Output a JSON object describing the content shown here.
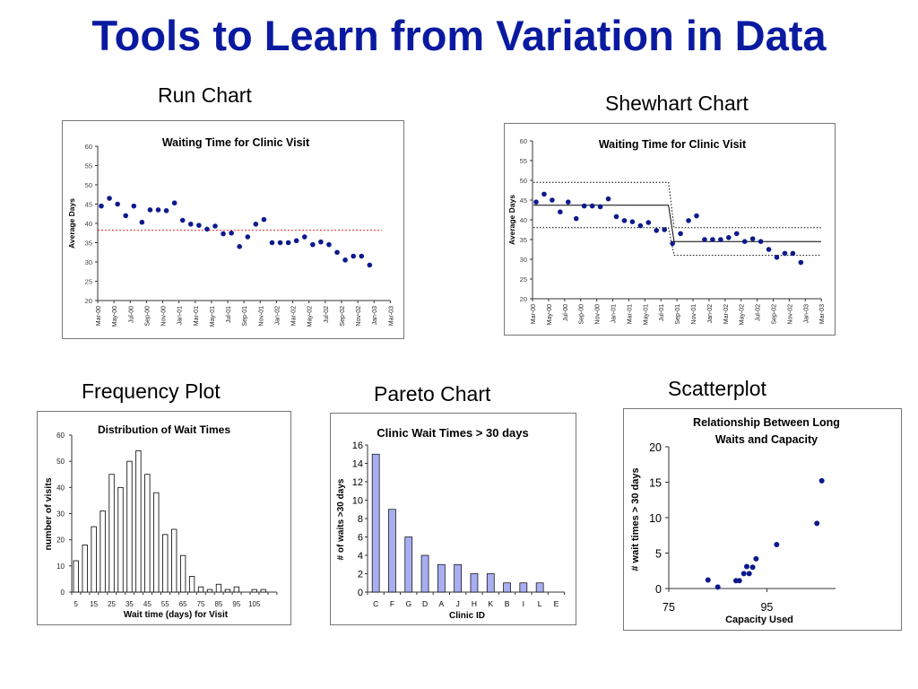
{
  "slide": {
    "title": "Tools to Learn from Variation in Data",
    "captions": {
      "run": "Run Chart",
      "shewhart": "Shewhart Chart",
      "frequency": "Frequency Plot",
      "pareto": "Pareto Chart",
      "scatter": "Scatterplot"
    }
  },
  "chart_data": [
    {
      "id": "run",
      "type": "line",
      "title": "Waiting Time for Clinic Visit",
      "ylabel": "Average Days",
      "xlabel": "",
      "ylim": [
        20,
        60
      ],
      "yticks": [
        20,
        25,
        30,
        35,
        40,
        45,
        50,
        55,
        60
      ],
      "xtick_labels": [
        "Mar-00",
        "May-00",
        "Jul-00",
        "Sep-00",
        "Nov-00",
        "Jan-01",
        "Mar-01",
        "May-01",
        "Jul-01",
        "Sep-01",
        "Nov-01",
        "Jan-02",
        "Mar-02",
        "May-02",
        "Jul-02",
        "Sep-02",
        "Nov-02",
        "Jan-03",
        "Mar-03"
      ],
      "series": [
        {
          "values": [
            44.5,
            46.5,
            45,
            42,
            44.5,
            40.3,
            43.5,
            43.5,
            43.3,
            45.3,
            40.8,
            39.8,
            39.5,
            38.5,
            39.3,
            37.3,
            37.5,
            34,
            36.5,
            39.8,
            41,
            35,
            35,
            35,
            35.5,
            36.5,
            34.5,
            35.2,
            34.5,
            32.5,
            30.5,
            31.5,
            31.5,
            29.2
          ]
        }
      ],
      "median": 38.2,
      "median_color": "#e02020",
      "point_color": "#0c1a8c",
      "grid": false
    },
    {
      "id": "shewhart",
      "type": "line",
      "title": "Waiting Time for Clinic Visit",
      "ylabel": "Average Days",
      "xlabel": "",
      "ylim": [
        20,
        60
      ],
      "yticks": [
        20,
        25,
        30,
        35,
        40,
        45,
        50,
        55,
        60
      ],
      "xtick_labels": [
        "Mar-00",
        "May-00",
        "Jul-00",
        "Sep-00",
        "Nov-00",
        "Jan-01",
        "Mar-01",
        "May-01",
        "Jul-01",
        "Sep-01",
        "Nov-01",
        "Jan-02",
        "Mar-02",
        "May-02",
        "Jul-02",
        "Sep-02",
        "Nov-02",
        "Jan-03",
        "Mar-03"
      ],
      "series": [
        {
          "values": [
            44.5,
            46.5,
            45,
            42,
            44.5,
            40.3,
            43.5,
            43.5,
            43.3,
            45.3,
            40.8,
            39.8,
            39.5,
            38.5,
            39.3,
            37.3,
            37.5,
            34,
            36.5,
            39.8,
            41,
            35,
            35,
            35,
            35.5,
            36.5,
            34.5,
            35.2,
            34.5,
            32.5,
            30.5,
            31.5,
            31.5,
            29.2
          ]
        }
      ],
      "phases": [
        {
          "start": 0,
          "end": 16,
          "center": 43.7,
          "ucl": 49.5,
          "lcl": 38
        },
        {
          "start": 17,
          "end": 33,
          "center": 34.5,
          "ucl": 38,
          "lcl": 31
        }
      ],
      "point_color": "#0c1a8c",
      "grid": false
    },
    {
      "id": "frequency",
      "type": "bar",
      "title": "Distribution of Wait Times",
      "xlabel": "Wait time (days) for Visit",
      "ylabel": "number of visits",
      "ylim": [
        0,
        60
      ],
      "yticks": [
        0,
        10,
        20,
        30,
        40,
        50,
        60
      ],
      "categories": [
        5,
        10,
        15,
        20,
        25,
        30,
        35,
        40,
        45,
        50,
        55,
        60,
        65,
        70,
        75,
        80,
        85,
        90,
        95,
        100,
        105,
        110,
        115
      ],
      "xtick_labels": [
        "5",
        "15",
        "25",
        "35",
        "45",
        "55",
        "65",
        "75",
        "85",
        "95",
        "105"
      ],
      "values": [
        12,
        18,
        25,
        31,
        45,
        40,
        50,
        54,
        45,
        38,
        22,
        24,
        14,
        6,
        2,
        1,
        3,
        1,
        2,
        0,
        1,
        1,
        0
      ],
      "bar_color": "#ffffff",
      "grid": false
    },
    {
      "id": "pareto",
      "type": "bar",
      "title": "Clinic Wait Times > 30 days",
      "xlabel": "Clinic ID",
      "ylabel": "# of waits >30 days",
      "ylim": [
        0,
        16
      ],
      "yticks": [
        0,
        2,
        4,
        6,
        8,
        10,
        12,
        14,
        16
      ],
      "categories": [
        "C",
        "F",
        "G",
        "D",
        "A",
        "J",
        "H",
        "K",
        "B",
        "I",
        "L",
        "E"
      ],
      "values": [
        15,
        9,
        6,
        4,
        3,
        3,
        2,
        2,
        1,
        1,
        1,
        0
      ],
      "bar_color": "#a8aef0",
      "grid": false
    },
    {
      "id": "scatter",
      "type": "scatter",
      "title": "Relationship Between Long Waits and Capacity",
      "xlabel": "Capacity Used",
      "ylabel": "# wait times > 30 days",
      "xlim": [
        75,
        109
      ],
      "ylim": [
        0,
        20
      ],
      "xticks": [
        75,
        95
      ],
      "yticks": [
        0,
        5,
        10,
        15,
        20
      ],
      "points": [
        [
          83,
          1.2
        ],
        [
          85,
          0.2
        ],
        [
          88.7,
          1.1
        ],
        [
          89.4,
          1.1
        ],
        [
          90.3,
          2.1
        ],
        [
          90.9,
          3.1
        ],
        [
          91.4,
          2.1
        ],
        [
          92.1,
          3
        ],
        [
          92.8,
          4.2
        ],
        [
          97,
          6.2
        ],
        [
          105.2,
          9.2
        ],
        [
          106.2,
          15.2
        ]
      ],
      "point_color": "#0c1a8c",
      "grid": false
    }
  ]
}
